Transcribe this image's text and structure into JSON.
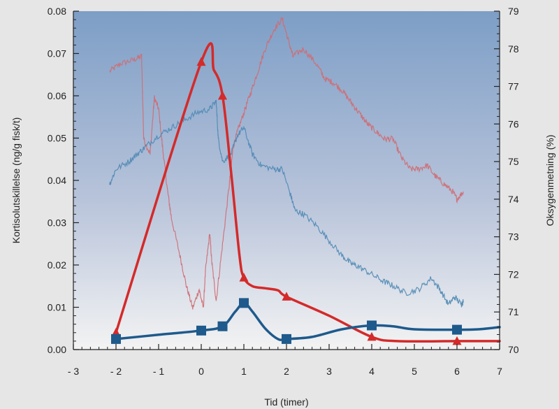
{
  "chart_data": {
    "type": "line",
    "xlabel": "Tid (timer)",
    "ylabel": "Kortisolutskillelse (ng/g fisk/t)",
    "y2label": "Oksygenmetning (%)",
    "xlim": [
      -3,
      7
    ],
    "ylim": [
      0,
      0.08
    ],
    "y2lim": [
      70,
      79
    ],
    "x_ticks": [
      -3,
      -2,
      -1,
      0,
      1,
      2,
      3,
      4,
      5,
      6,
      7
    ],
    "x_tick_labels": [
      "- 3",
      "- 2",
      "- 1",
      "0",
      "1",
      "2",
      "3",
      "4",
      "5",
      "6",
      "7"
    ],
    "y_ticks": [
      0,
      0.01,
      0.02,
      0.03,
      0.04,
      0.05,
      0.06,
      0.07,
      0.08
    ],
    "y_tick_labels": [
      "0.00",
      "0.01",
      "0.02",
      "0.03",
      "0.04",
      "0.05",
      "0.06",
      "0.07",
      "0.08"
    ],
    "y2_ticks": [
      70,
      71,
      72,
      73,
      74,
      75,
      76,
      77,
      78,
      79
    ],
    "y2_tick_labels": [
      "70",
      "71",
      "72",
      "73",
      "74",
      "75",
      "76",
      "77",
      "78",
      "79"
    ],
    "series": [
      {
        "axis": "left",
        "color": "#d42a2a",
        "marker": "triangle",
        "points": [
          [
            -2,
            0.004
          ],
          [
            0,
            0.068
          ],
          [
            0.5,
            0.06
          ],
          [
            1,
            0.017
          ],
          [
            2,
            0.0125
          ],
          [
            4,
            0.003
          ],
          [
            6,
            0.002
          ]
        ],
        "curve": [
          [
            -2,
            0.004
          ],
          [
            0,
            0.068
          ],
          [
            0.3,
            0.066
          ],
          [
            0.5,
            0.06
          ],
          [
            0.7,
            0.042
          ],
          [
            0.9,
            0.022
          ],
          [
            1,
            0.017
          ],
          [
            1.2,
            0.015
          ],
          [
            1.5,
            0.0145
          ],
          [
            1.8,
            0.014
          ],
          [
            2,
            0.0125
          ],
          [
            3,
            0.008
          ],
          [
            4,
            0.003
          ],
          [
            4.6,
            0.002
          ],
          [
            6,
            0.002
          ],
          [
            7,
            0.002
          ]
        ]
      },
      {
        "axis": "left",
        "color": "#1e5a8c",
        "marker": "square",
        "points": [
          [
            -2,
            0.0025
          ],
          [
            0,
            0.0045
          ],
          [
            0.5,
            0.0055
          ],
          [
            1,
            0.011
          ],
          [
            2,
            0.0025
          ],
          [
            4,
            0.0057
          ],
          [
            6,
            0.0047
          ]
        ],
        "curve": [
          [
            -2,
            0.0025
          ],
          [
            -1,
            0.0035
          ],
          [
            0,
            0.0045
          ],
          [
            0.5,
            0.0055
          ],
          [
            0.8,
            0.009
          ],
          [
            1,
            0.011
          ],
          [
            1.2,
            0.009
          ],
          [
            1.5,
            0.005
          ],
          [
            1.8,
            0.0025
          ],
          [
            2,
            0.0025
          ],
          [
            2.6,
            0.003
          ],
          [
            3.3,
            0.0048
          ],
          [
            4,
            0.0057
          ],
          [
            4.5,
            0.0055
          ],
          [
            5,
            0.0048
          ],
          [
            6,
            0.0047
          ],
          [
            6.5,
            0.0048
          ],
          [
            7,
            0.0053
          ]
        ]
      },
      {
        "axis": "right",
        "color": "#cf6c73",
        "style": "thin-noisy",
        "trace": [
          [
            -2.15,
            77.4
          ],
          [
            -1.9,
            77.6
          ],
          [
            -1.6,
            77.7
          ],
          [
            -1.4,
            77.8
          ],
          [
            -1.35,
            75.6
          ],
          [
            -1.2,
            75.2
          ],
          [
            -1.1,
            76.7
          ],
          [
            -1.0,
            76.4
          ],
          [
            -0.9,
            75.3
          ],
          [
            -0.8,
            74.3
          ],
          [
            -0.7,
            73.5
          ],
          [
            -0.5,
            72.5
          ],
          [
            -0.35,
            71.7
          ],
          [
            -0.2,
            71.1
          ],
          [
            -0.05,
            71.6
          ],
          [
            0.05,
            71.1
          ],
          [
            0.1,
            72.1
          ],
          [
            0.2,
            73.1
          ],
          [
            0.25,
            72.3
          ],
          [
            0.35,
            71.3
          ],
          [
            0.5,
            72.8
          ],
          [
            0.65,
            74.3
          ],
          [
            0.75,
            75.4
          ],
          [
            0.85,
            75.8
          ],
          [
            1.0,
            76.3
          ],
          [
            1.15,
            76.8
          ],
          [
            1.3,
            77.3
          ],
          [
            1.5,
            78.0
          ],
          [
            1.7,
            78.5
          ],
          [
            1.9,
            78.8
          ],
          [
            2.05,
            78.2
          ],
          [
            2.15,
            77.8
          ],
          [
            2.4,
            78.0
          ],
          [
            2.7,
            77.6
          ],
          [
            2.9,
            77.2
          ],
          [
            3.1,
            77.1
          ],
          [
            3.3,
            76.9
          ],
          [
            3.5,
            76.6
          ],
          [
            3.7,
            76.3
          ],
          [
            3.9,
            76.0
          ],
          [
            4.1,
            75.8
          ],
          [
            4.3,
            75.6
          ],
          [
            4.5,
            75.6
          ],
          [
            4.7,
            75.1
          ],
          [
            4.9,
            74.8
          ],
          [
            5.1,
            74.8
          ],
          [
            5.3,
            74.9
          ],
          [
            5.5,
            74.6
          ],
          [
            5.7,
            74.4
          ],
          [
            5.9,
            74.2
          ],
          [
            6.0,
            74.0
          ],
          [
            6.15,
            74.2
          ]
        ]
      },
      {
        "axis": "right",
        "color": "#4f88b4",
        "style": "thin-noisy",
        "trace": [
          [
            -2.15,
            74.4
          ],
          [
            -2.0,
            74.8
          ],
          [
            -1.7,
            75.0
          ],
          [
            -1.5,
            75.2
          ],
          [
            -1.3,
            75.4
          ],
          [
            -1.0,
            75.7
          ],
          [
            -0.7,
            75.9
          ],
          [
            -0.4,
            76.1
          ],
          [
            -0.1,
            76.3
          ],
          [
            0.2,
            76.4
          ],
          [
            0.35,
            76.6
          ],
          [
            0.4,
            75.6
          ],
          [
            0.5,
            75.0
          ],
          [
            0.7,
            75.2
          ],
          [
            0.85,
            75.7
          ],
          [
            1.0,
            75.9
          ],
          [
            1.2,
            75.2
          ],
          [
            1.4,
            74.9
          ],
          [
            1.7,
            74.8
          ],
          [
            1.9,
            74.8
          ],
          [
            2.1,
            74.1
          ],
          [
            2.2,
            73.7
          ],
          [
            2.4,
            73.6
          ],
          [
            2.7,
            73.3
          ],
          [
            3.0,
            72.9
          ],
          [
            3.3,
            72.5
          ],
          [
            3.5,
            72.3
          ],
          [
            3.7,
            72.2
          ],
          [
            4.0,
            72.0
          ],
          [
            4.3,
            71.8
          ],
          [
            4.5,
            71.7
          ],
          [
            4.8,
            71.5
          ],
          [
            5.1,
            71.6
          ],
          [
            5.4,
            71.9
          ],
          [
            5.6,
            71.6
          ],
          [
            5.8,
            71.2
          ],
          [
            5.95,
            71.4
          ],
          [
            6.1,
            71.2
          ],
          [
            6.15,
            71.3
          ]
        ]
      }
    ]
  }
}
